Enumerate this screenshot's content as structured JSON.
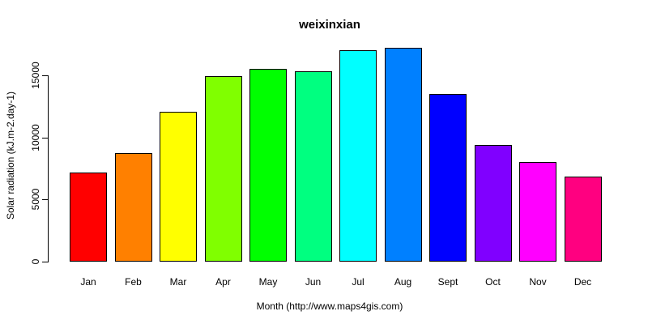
{
  "page": {
    "background_color": "#FFFFFF",
    "text_color": "#000000"
  },
  "chart_data": {
    "type": "bar",
    "title": "weixinxian",
    "xlabel": "Month (http://www.maps4gis.com)",
    "ylabel": "Solar radiation (kJ.m-2.day-1)",
    "categories": [
      "Jan",
      "Feb",
      "Mar",
      "Apr",
      "May",
      "Jun",
      "Jul",
      "Aug",
      "Sept",
      "Oct",
      "Nov",
      "Dec"
    ],
    "values": [
      7150,
      8750,
      12050,
      14950,
      15500,
      15300,
      17050,
      17250,
      13500,
      9400,
      8000,
      6850
    ],
    "bar_colors": [
      "#FF0000",
      "#FF8000",
      "#FFFF00",
      "#80FF00",
      "#00FF00",
      "#00FF80",
      "#00FFFF",
      "#0080FF",
      "#0000FF",
      "#8000FF",
      "#FF00FF",
      "#FF0080"
    ],
    "bar_border_color": "#000000",
    "axis_color": "#000000",
    "y_ticks": [
      0,
      5000,
      10000,
      15000
    ],
    "y_tick_labels": [
      "0",
      "5000",
      "10000",
      "15000"
    ],
    "ylim": [
      0,
      17900
    ],
    "grid": false,
    "legend": "none"
  }
}
